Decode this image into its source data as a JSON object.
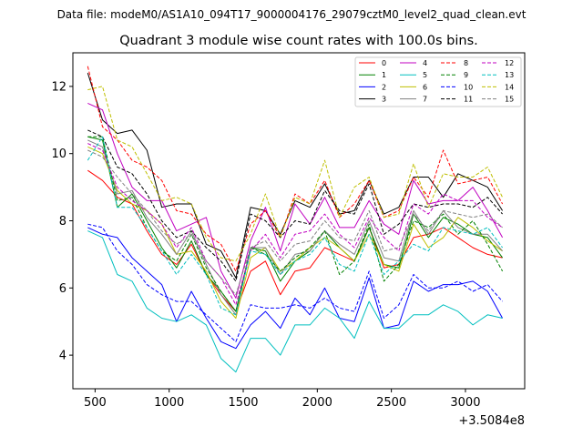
{
  "chart_data": {
    "type": "line",
    "suptitle": "Data file: modeM0/AS1A10_094T17_9000004176_29079cztM0_level2_quad_clean.evt",
    "title": "Quadrant 3 module wise count rates with 100.0s bins.",
    "xlabel": "",
    "ylabel": "",
    "offset_label": "+3.5084e8",
    "xlim": [
      350,
      3400
    ],
    "ylim": [
      3.0,
      13.0
    ],
    "xticks": [
      500,
      1000,
      1500,
      2000,
      2500,
      3000
    ],
    "yticks": [
      4,
      6,
      8,
      10,
      12
    ],
    "x": [
      450,
      550,
      650,
      750,
      850,
      950,
      1050,
      1150,
      1250,
      1350,
      1450,
      1550,
      1650,
      1750,
      1850,
      1950,
      2050,
      2150,
      2250,
      2350,
      2450,
      2550,
      2650,
      2750,
      2850,
      2950,
      3050,
      3150,
      3250
    ],
    "legend_position": "upper-right",
    "legend_columns": 4,
    "series": [
      {
        "name": "0",
        "color": "#ff0000",
        "dash": "solid",
        "values": [
          9.5,
          9.2,
          8.7,
          8.5,
          7.7,
          7.0,
          6.7,
          7.3,
          6.4,
          5.8,
          5.3,
          6.5,
          6.8,
          5.8,
          6.5,
          6.6,
          7.2,
          7.0,
          6.8,
          7.8,
          6.6,
          6.7,
          7.5,
          7.6,
          7.8,
          7.5,
          7.2,
          7.0,
          6.9
        ]
      },
      {
        "name": "1",
        "color": "#008000",
        "dash": "solid",
        "values": [
          10.5,
          10.4,
          8.4,
          8.8,
          8.0,
          7.2,
          6.6,
          7.4,
          6.4,
          5.9,
          5.3,
          7.2,
          7.1,
          6.2,
          6.8,
          7.1,
          7.7,
          7.2,
          6.8,
          7.8,
          6.7,
          6.6,
          8.2,
          7.5,
          8.1,
          7.9,
          7.6,
          7.5,
          6.9
        ]
      },
      {
        "name": "2",
        "color": "#0000ff",
        "dash": "solid",
        "values": [
          7.8,
          7.6,
          7.5,
          6.9,
          6.5,
          6.1,
          5.0,
          5.9,
          5.1,
          4.4,
          4.2,
          4.9,
          5.3,
          4.8,
          5.7,
          5.2,
          6.0,
          5.1,
          5.0,
          6.3,
          4.8,
          4.9,
          6.2,
          5.9,
          6.1,
          6.1,
          6.2,
          5.9,
          5.1
        ]
      },
      {
        "name": "3",
        "color": "#000000",
        "dash": "solid",
        "values": [
          12.4,
          11.0,
          10.6,
          10.7,
          10.1,
          8.4,
          8.5,
          8.5,
          7.3,
          7.1,
          6.3,
          8.4,
          8.3,
          7.6,
          8.6,
          8.4,
          9.1,
          8.2,
          8.3,
          9.2,
          8.2,
          8.4,
          9.3,
          9.3,
          8.7,
          9.4,
          9.2,
          9.0,
          8.3
        ]
      },
      {
        "name": "4",
        "color": "#c000c0",
        "dash": "solid",
        "values": [
          11.5,
          11.3,
          10.0,
          9.0,
          8.6,
          8.6,
          7.7,
          7.9,
          8.1,
          6.5,
          5.7,
          7.4,
          8.4,
          7.1,
          8.5,
          7.9,
          8.7,
          7.8,
          7.8,
          8.6,
          7.9,
          7.6,
          9.2,
          8.5,
          8.6,
          8.6,
          9.0,
          8.3,
          7.5
        ]
      },
      {
        "name": "5",
        "color": "#00bfbf",
        "dash": "solid",
        "values": [
          7.7,
          7.5,
          6.4,
          6.2,
          5.4,
          5.1,
          5.0,
          5.2,
          4.9,
          3.9,
          3.5,
          4.5,
          4.5,
          4.0,
          4.9,
          4.9,
          5.4,
          5.1,
          4.5,
          5.6,
          4.8,
          4.8,
          5.2,
          5.2,
          5.5,
          5.3,
          4.9,
          5.2,
          5.1
        ]
      },
      {
        "name": "6",
        "color": "#bfbf00",
        "dash": "solid",
        "values": [
          10.2,
          10.0,
          8.9,
          8.5,
          8.3,
          7.9,
          7.0,
          7.1,
          6.5,
          5.6,
          5.1,
          6.9,
          7.2,
          6.5,
          6.8,
          7.2,
          7.5,
          7.2,
          6.8,
          7.6,
          6.7,
          6.5,
          7.9,
          7.2,
          7.5,
          8.1,
          7.8,
          7.4,
          7.1
        ]
      },
      {
        "name": "7",
        "color": "#808080",
        "dash": "solid",
        "values": [
          10.4,
          10.2,
          8.8,
          8.9,
          8.1,
          7.6,
          7.0,
          7.7,
          6.7,
          5.8,
          5.2,
          7.2,
          7.2,
          6.4,
          7.0,
          7.1,
          7.7,
          7.3,
          7.0,
          8.0,
          6.9,
          6.8,
          8.3,
          7.6,
          8.3,
          7.8,
          7.6,
          7.6,
          7.1
        ]
      },
      {
        "name": "8",
        "color": "#ff0000",
        "dash": "dashed",
        "values": [
          12.6,
          10.8,
          10.4,
          9.8,
          9.6,
          9.2,
          8.3,
          8.2,
          7.6,
          7.3,
          6.5,
          7.9,
          8.3,
          7.5,
          8.8,
          8.5,
          9.2,
          8.1,
          8.5,
          9.2,
          8.1,
          8.3,
          9.3,
          8.7,
          10.1,
          9.1,
          9.2,
          9.3,
          8.5
        ]
      },
      {
        "name": "9",
        "color": "#008000",
        "dash": "dashed",
        "values": [
          10.5,
          10.5,
          8.6,
          8.7,
          7.8,
          7.1,
          6.8,
          7.6,
          6.6,
          5.9,
          5.3,
          7.2,
          7.0,
          6.5,
          6.9,
          7.2,
          7.7,
          6.4,
          6.8,
          7.9,
          6.2,
          6.7,
          8.0,
          7.8,
          8.2,
          7.6,
          8.0,
          7.3,
          6.5
        ]
      },
      {
        "name": "10",
        "color": "#0000ff",
        "dash": "dashed",
        "values": [
          7.9,
          7.8,
          7.1,
          6.7,
          6.1,
          5.8,
          5.6,
          5.6,
          5.2,
          4.8,
          4.4,
          5.5,
          5.4,
          5.4,
          5.5,
          5.4,
          5.7,
          5.4,
          5.3,
          6.5,
          5.1,
          5.5,
          6.4,
          6.0,
          6.0,
          6.2,
          5.9,
          6.1,
          5.6
        ]
      },
      {
        "name": "11",
        "color": "#000000",
        "dash": "dashed",
        "values": [
          10.7,
          10.5,
          9.6,
          9.4,
          8.8,
          8.0,
          7.5,
          7.7,
          7.2,
          6.8,
          6.2,
          8.2,
          8.0,
          7.5,
          8.0,
          7.9,
          8.9,
          8.3,
          8.2,
          9.1,
          7.6,
          7.9,
          8.5,
          8.4,
          8.5,
          8.5,
          8.4,
          8.7,
          8.2
        ]
      },
      {
        "name": "12",
        "color": "#c000c0",
        "dash": "dashed",
        "values": [
          10.3,
          10.1,
          9.0,
          8.6,
          8.3,
          7.9,
          7.2,
          7.8,
          6.8,
          6.3,
          5.5,
          7.1,
          7.6,
          6.9,
          7.6,
          7.7,
          8.2,
          7.6,
          7.2,
          8.1,
          7.5,
          7.1,
          8.5,
          8.2,
          8.8,
          8.6,
          8.6,
          8.1,
          7.8
        ]
      },
      {
        "name": "13",
        "color": "#00bfbf",
        "dash": "dashed",
        "values": [
          9.8,
          10.5,
          8.4,
          8.4,
          7.8,
          7.1,
          6.4,
          7.0,
          6.4,
          5.4,
          5.2,
          7.1,
          7.0,
          6.4,
          6.8,
          7.0,
          7.5,
          6.7,
          6.5,
          7.6,
          6.4,
          6.8,
          7.3,
          7.1,
          7.8,
          7.7,
          7.6,
          7.8,
          7.2
        ]
      },
      {
        "name": "14",
        "color": "#bfbf00",
        "dash": "dashed",
        "values": [
          11.9,
          12.0,
          10.4,
          10.2,
          9.4,
          8.6,
          8.7,
          8.5,
          7.5,
          6.9,
          6.8,
          7.6,
          8.8,
          7.5,
          8.7,
          8.5,
          9.8,
          8.1,
          9.0,
          9.3,
          8.1,
          8.2,
          9.7,
          8.4,
          9.4,
          9.3,
          9.3,
          9.6,
          8.7
        ]
      },
      {
        "name": "15",
        "color": "#808080",
        "dash": "dashed",
        "values": [
          10.1,
          9.9,
          9.3,
          8.8,
          8.3,
          7.7,
          7.3,
          7.6,
          6.8,
          6.3,
          5.8,
          7.2,
          7.4,
          6.8,
          7.3,
          7.4,
          8.0,
          7.5,
          7.4,
          8.3,
          7.1,
          7.2,
          8.2,
          7.7,
          8.3,
          8.2,
          8.1,
          8.2,
          7.8
        ]
      }
    ]
  }
}
